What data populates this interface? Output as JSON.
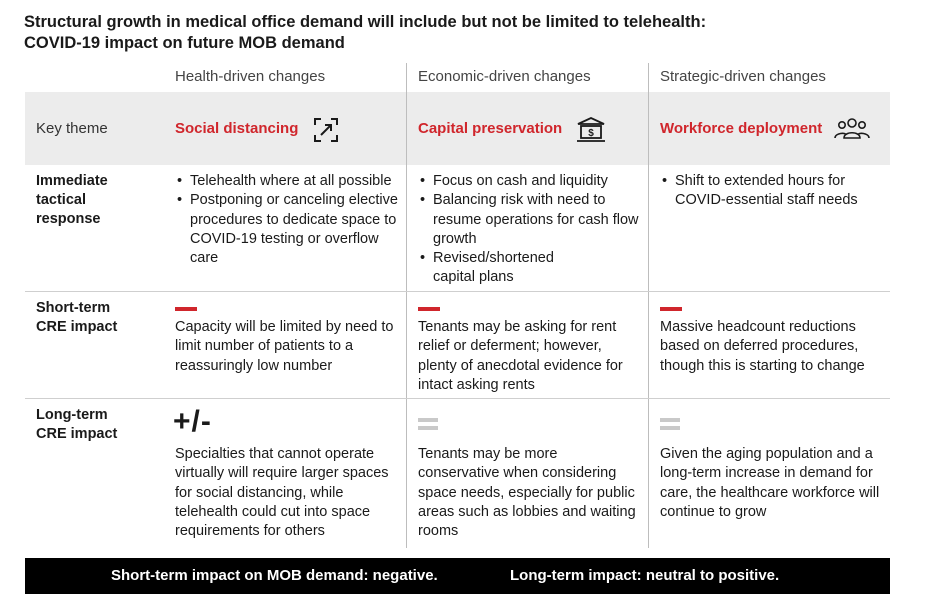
{
  "title": {
    "line1": "Structural growth in medical office demand will include but not be limited to telehealth:",
    "line2": "COVID-19 impact on future MOB demand"
  },
  "columns": [
    {
      "header": "Health-driven changes"
    },
    {
      "header": "Economic-driven changes"
    },
    {
      "header": "Strategic-driven changes"
    }
  ],
  "key_theme": {
    "label": "Key theme",
    "themes": [
      {
        "label": "Social distancing",
        "icon": "diagonal-arrows-icon"
      },
      {
        "label": "Capital preservation",
        "icon": "bank-dollar-icon"
      },
      {
        "label": "Workforce deployment",
        "icon": "people-group-icon"
      }
    ],
    "accent_color": "#d0262c"
  },
  "rows": {
    "immediate": {
      "label": "Immediate tactical response",
      "cells": [
        [
          "Telehealth where at all possible",
          "Postponing or canceling elective procedures to dedicate space to COVID-19 testing or overflow care"
        ],
        [
          "Focus on cash and liquidity",
          "Balancing risk with need to resume operations for cash flow growth",
          "Revised/shortened capital plans"
        ],
        [
          "Shift to extended hours for COVID-essential staff needs"
        ]
      ]
    },
    "short_term": {
      "label": "Short-term CRE impact",
      "indicators": [
        "negative",
        "negative",
        "negative"
      ],
      "cells": [
        "Capacity will be limited by need to limit number of patients to a reassuringly low number",
        "Tenants may be asking for rent relief or deferment; however, plenty of anecdotal evidence for intact asking rents",
        "Massive headcount reductions based on deferred procedures, though this is starting to change"
      ]
    },
    "long_term": {
      "label": "Long-term CRE impact",
      "indicators": [
        "+/-",
        "neutral",
        "neutral"
      ],
      "cells": [
        "Specialties that cannot operate virtually will require larger spaces for social distancing, while telehealth could cut into space requirements for others",
        "Tenants may be more conservative when considering space needs, especially for public areas such as lobbies and waiting rooms",
        "Given the aging population and a long-term increase in demand for care, the healthcare workforce will continue to grow"
      ]
    }
  },
  "footer": {
    "short_term": "Short-term impact on MOB demand: negative.",
    "long_term": "Long-term impact: neutral to positive."
  }
}
